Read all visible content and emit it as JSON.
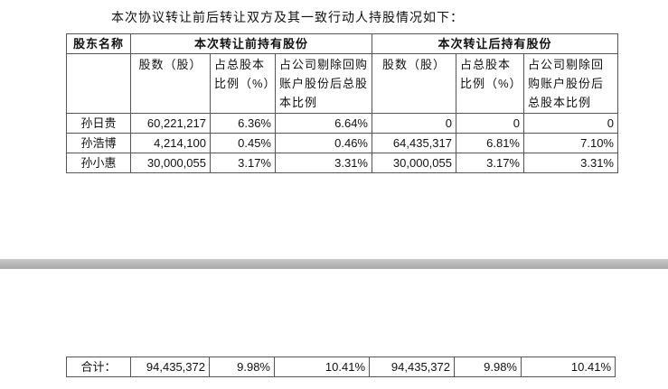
{
  "title": "本次协议转让前后转让双方及其一致行动人持股情况如下：",
  "header": {
    "name": "股东名称",
    "before": "本次转让前持有股份",
    "after": "本次转让后持有股份",
    "shares": "股数（股）",
    "ratio": "占总股本比例（%）",
    "ratio_ex": "占公司剔除回购账户股份后总股本比例"
  },
  "rows": [
    {
      "name": "孙日贵",
      "b_shares": "60,221,217",
      "b_ratio": "6.36%",
      "b_ratio_ex": "6.64%",
      "a_shares": "0",
      "a_ratio": "0",
      "a_ratio_ex": "0"
    },
    {
      "name": "孙浩博",
      "b_shares": "4,214,100",
      "b_ratio": "0.45%",
      "b_ratio_ex": "0.46%",
      "a_shares": "64,435,317",
      "a_ratio": "6.81%",
      "a_ratio_ex": "7.10%"
    },
    {
      "name": "孙小惠",
      "b_shares": "30,000,055",
      "b_ratio": "3.17%",
      "b_ratio_ex": "3.31%",
      "a_shares": "30,000,055",
      "a_ratio": "3.17%",
      "a_ratio_ex": "3.31%"
    }
  ],
  "total": {
    "name": "合计：",
    "b_shares": "94,435,372",
    "b_ratio": "9.98%",
    "b_ratio_ex": "10.41%",
    "a_shares": "94,435,372",
    "a_ratio": "9.98%",
    "a_ratio_ex": "10.41%"
  }
}
